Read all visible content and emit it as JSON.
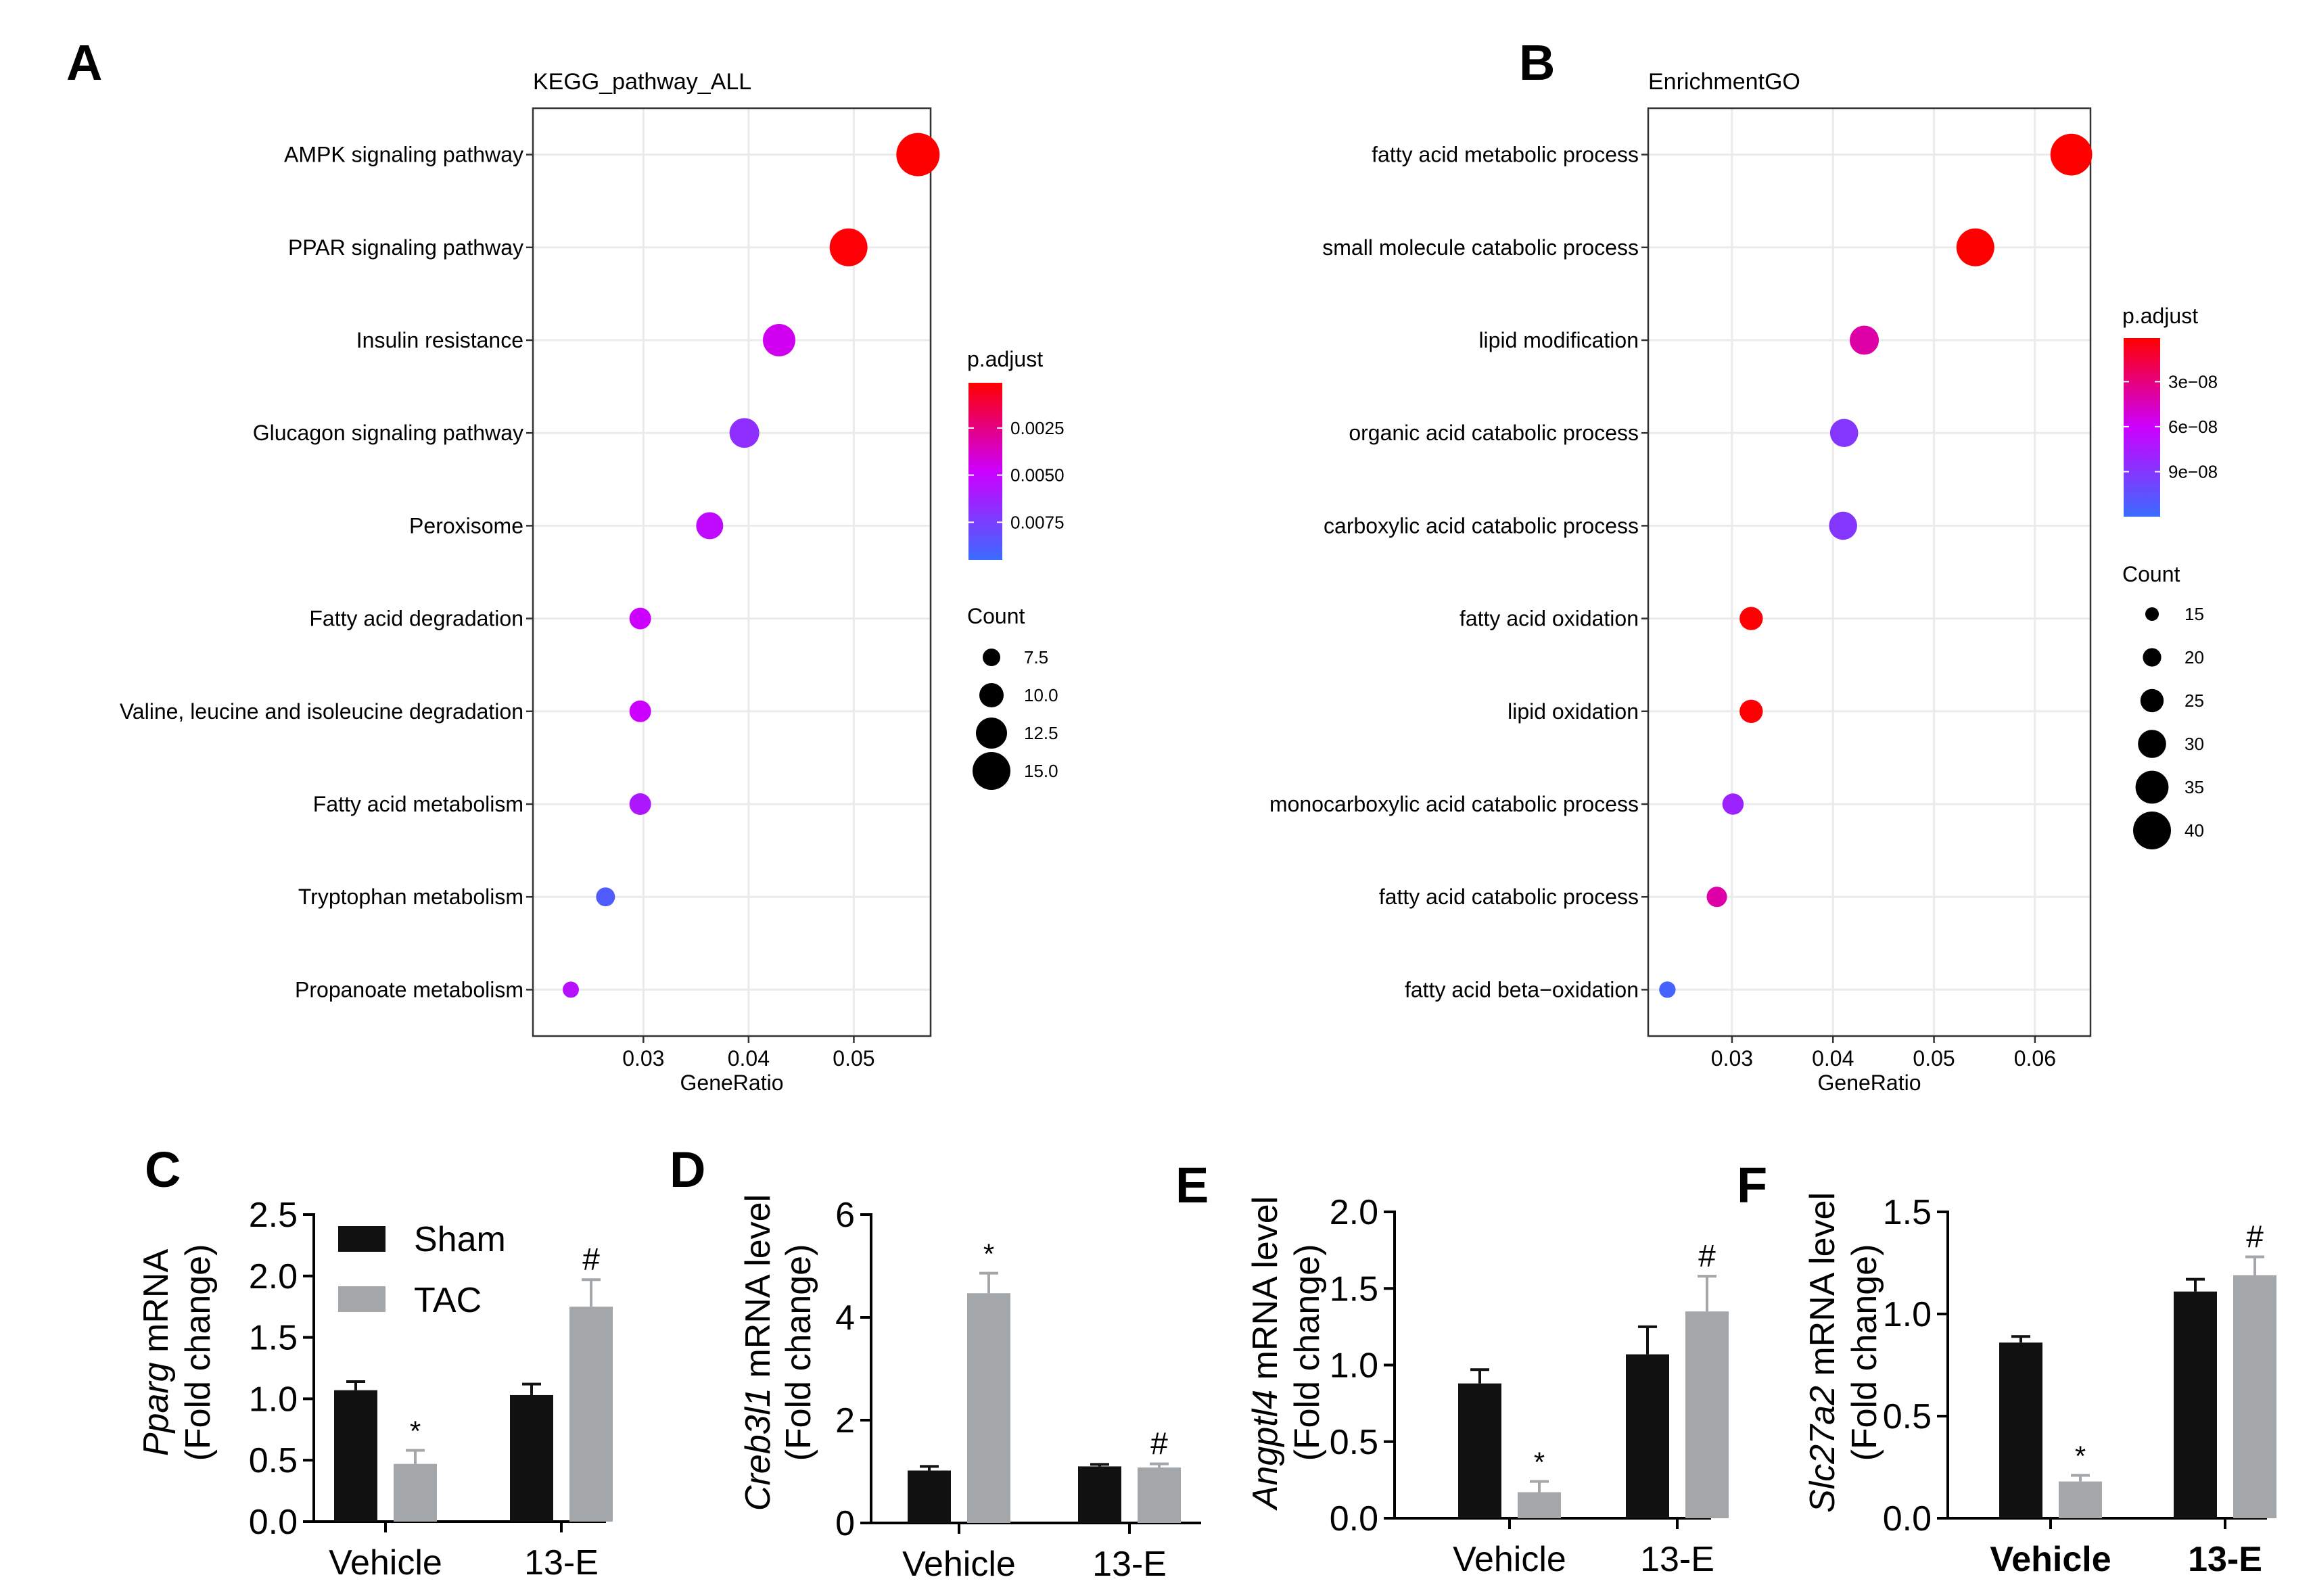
{
  "colors": {
    "sham": "#111111",
    "tac": "#a3a7aa",
    "panel_border": "#333333",
    "grid": "#ebebeb",
    "grad_high": "#ff0000",
    "grad_mid": "#cc00ff",
    "grad_low": "#3b6cff"
  },
  "chart_data": [
    {
      "panel": "A",
      "type": "scatter",
      "title": "KEGG_pathway_ALL",
      "xlabel": "GeneRatio",
      "ylabel": "",
      "xlim": [
        0.0195,
        0.0573
      ],
      "xticks": [
        0.03,
        0.04,
        0.05
      ],
      "xtick_labels": [
        "0.03",
        "0.04",
        "0.05"
      ],
      "terms": [
        "AMPK signaling pathway",
        "PPAR signaling pathway",
        "Insulin resistance",
        "Glucagon signaling pathway",
        "Peroxisome",
        "Fatty acid degradation",
        "Valine, leucine and isoleucine degradation",
        "Fatty acid metabolism",
        "Tryptophan metabolism",
        "Propanoate metabolism"
      ],
      "gene_ratio": [
        0.0561,
        0.0495,
        0.0429,
        0.0396,
        0.0363,
        0.0297,
        0.0297,
        0.0297,
        0.0264,
        0.0231
      ],
      "count": [
        17,
        15,
        13,
        12,
        11,
        9,
        9,
        9,
        8,
        7
      ],
      "p_adjust": [
        0.0001,
        0.0002,
        0.0045,
        0.0068,
        0.0052,
        0.0048,
        0.0048,
        0.0058,
        0.0088,
        0.0055
      ],
      "color_legend": {
        "title": "p.adjust",
        "labels": [
          "0.0025",
          "0.0050",
          "0.0075"
        ],
        "values": [
          0.0025,
          0.005,
          0.0075
        ],
        "range": [
          0.0001,
          0.0095
        ]
      },
      "size_legend": {
        "title": "Count",
        "labels": [
          "7.5",
          "10.0",
          "12.5",
          "15.0"
        ],
        "values": [
          7.5,
          10,
          12.5,
          15
        ]
      }
    },
    {
      "panel": "B",
      "type": "scatter",
      "title": "EnrichmentGO",
      "xlabel": "GeneRatio",
      "ylabel": "",
      "xlim": [
        0.0217,
        0.0655
      ],
      "xticks": [
        0.03,
        0.04,
        0.05,
        0.06
      ],
      "xtick_labels": [
        "0.03",
        "0.04",
        "0.05",
        "0.06"
      ],
      "terms": [
        "fatty acid metabolic process",
        "small molecule catabolic process",
        "lipid modification",
        "organic acid catabolic process",
        "carboxylic acid catabolic process",
        "fatty acid oxidation",
        "lipid oxidation",
        "monocarboxylic acid catabolic process",
        "fatty acid catabolic process",
        "fatty acid beta−oxidation"
      ],
      "gene_ratio": [
        0.0636,
        0.0541,
        0.0431,
        0.0411,
        0.041,
        0.0319,
        0.0319,
        0.0301,
        0.0285,
        0.0236
      ],
      "count": [
        44,
        40,
        31,
        30,
        30,
        25,
        25,
        23,
        22,
        18
      ],
      "p_adjust": [
        1e-09,
        1e-09,
        4e-08,
        9e-08,
        9e-08,
        2e-09,
        2e-09,
        8e-08,
        4e-08,
        1.15e-07
      ],
      "color_legend": {
        "title": "p.adjust",
        "labels": [
          "3e−08",
          "6e−08",
          "9e−08"
        ],
        "values": [
          3e-08,
          6e-08,
          9e-08
        ],
        "range": [
          1e-09,
          1.2e-07
        ]
      },
      "size_legend": {
        "title": "Count",
        "labels": [
          "15",
          "20",
          "25",
          "30",
          "35",
          "40"
        ],
        "values": [
          15,
          20,
          25,
          30,
          35,
          40
        ]
      }
    },
    {
      "panel": "C",
      "type": "bar",
      "ylabel_italic": "Pparg",
      "ylabel_rest": " mRNA",
      "ylabel_line2": "(Fold change)",
      "categories": [
        "Vehicle",
        "13-E"
      ],
      "ylim": [
        0,
        2.5
      ],
      "yticks": [
        0,
        0.5,
        1.0,
        1.5,
        2.0,
        2.5
      ],
      "ytick_labels": [
        "0.0",
        "0.5",
        "1.0",
        "1.5",
        "2.0",
        "2.5"
      ],
      "series": [
        {
          "name": "Sham",
          "values": [
            1.07,
            1.03
          ],
          "errors": [
            0.07,
            0.09
          ],
          "marks": [
            "",
            ""
          ]
        },
        {
          "name": "TAC",
          "values": [
            0.47,
            1.75
          ],
          "errors": [
            0.11,
            0.22
          ],
          "marks": [
            "*",
            "#"
          ]
        }
      ],
      "bold_ticks": false
    },
    {
      "panel": "D",
      "type": "bar",
      "ylabel_italic": "Creb3l1",
      "ylabel_rest": " mRNA level",
      "ylabel_line2": "(Fold change)",
      "categories": [
        "Vehicle",
        "13-E"
      ],
      "ylim": [
        0,
        6
      ],
      "yticks": [
        0,
        2,
        4,
        6
      ],
      "ytick_labels": [
        "0",
        "2",
        "4",
        "6"
      ],
      "series": [
        {
          "name": "Sham",
          "values": [
            1.02,
            1.1
          ],
          "errors": [
            0.08,
            0.04
          ],
          "marks": [
            "",
            ""
          ]
        },
        {
          "name": "TAC",
          "values": [
            4.47,
            1.08
          ],
          "errors": [
            0.39,
            0.07
          ],
          "marks": [
            "*",
            "#"
          ]
        }
      ],
      "bold_ticks": false
    },
    {
      "panel": "E",
      "type": "bar",
      "ylabel_italic": "Angptl4",
      "ylabel_rest": " mRNA level",
      "ylabel_line2": "(Fold change)",
      "categories": [
        "Vehicle",
        "13-E"
      ],
      "ylim": [
        0,
        2.0
      ],
      "yticks": [
        0,
        0.5,
        1.0,
        1.5,
        2.0
      ],
      "ytick_labels": [
        "0.0",
        "0.5",
        "1.0",
        "1.5",
        "2.0"
      ],
      "series": [
        {
          "name": "Sham",
          "values": [
            0.88,
            1.07
          ],
          "errors": [
            0.09,
            0.18
          ],
          "marks": [
            "",
            ""
          ]
        },
        {
          "name": "TAC",
          "values": [
            0.17,
            1.35
          ],
          "errors": [
            0.07,
            0.23
          ],
          "marks": [
            "*",
            "#"
          ]
        }
      ],
      "bold_ticks": false
    },
    {
      "panel": "F",
      "type": "bar",
      "ylabel_italic": "Slc27a2",
      "ylabel_rest": " mRNA level",
      "ylabel_line2": "(Fold change)",
      "categories": [
        "Vehicle",
        "13-E"
      ],
      "ylim": [
        0,
        1.5
      ],
      "yticks": [
        0,
        0.5,
        1.0,
        1.5
      ],
      "ytick_labels": [
        "0.0",
        "0.5",
        "1.0",
        "1.5"
      ],
      "series": [
        {
          "name": "Sham",
          "values": [
            0.86,
            1.11
          ],
          "errors": [
            0.03,
            0.06
          ],
          "marks": [
            "",
            ""
          ]
        },
        {
          "name": "TAC",
          "values": [
            0.18,
            1.19
          ],
          "errors": [
            0.03,
            0.09
          ],
          "marks": [
            "*",
            "#"
          ]
        }
      ],
      "bold_ticks": true
    }
  ],
  "legend": {
    "sham": "Sham",
    "tac": "TAC"
  }
}
